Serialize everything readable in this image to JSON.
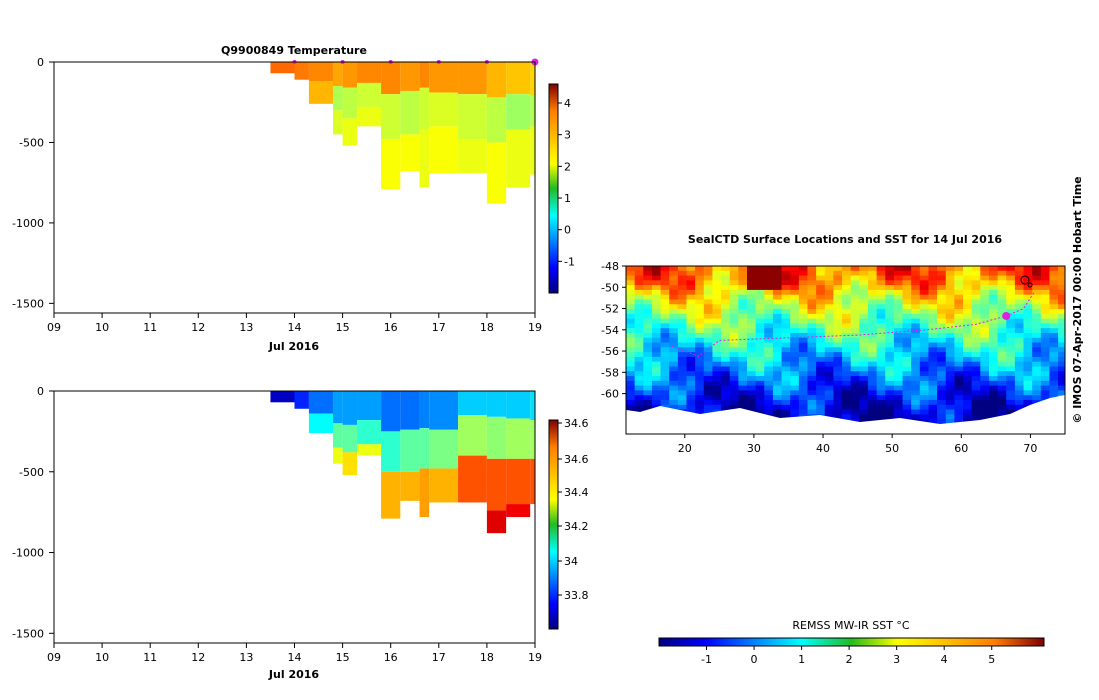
{
  "chart_data": [
    {
      "type": "heatmap",
      "title": "Q9900849  Temperature",
      "xlabel": "Jul 2016",
      "x_ticks": [
        "09",
        "10",
        "11",
        "12",
        "13",
        "14",
        "15",
        "16",
        "17",
        "18",
        "19"
      ],
      "x_range": [
        9,
        19
      ],
      "y_ticks": [
        0,
        -500,
        -1000,
        -1500
      ],
      "ylim": [
        -1560,
        0
      ],
      "colorbar": {
        "min": -2,
        "max": 4.6,
        "ticks": [
          "-1",
          "0",
          "1",
          "2",
          "3",
          "4"
        ]
      },
      "profiles": [
        {
          "day": 13.5,
          "depth": 70,
          "layers": [
            [
              0,
              70,
              3.1
            ]
          ]
        },
        {
          "day": 14.0,
          "depth": 110,
          "layers": [
            [
              0,
              110,
              3.0
            ]
          ]
        },
        {
          "day": 14.3,
          "depth": 260,
          "layers": [
            [
              0,
              120,
              2.9
            ],
            [
              120,
              260,
              2.6
            ]
          ]
        },
        {
          "day": 14.8,
          "depth": 450,
          "layers": [
            [
              0,
              150,
              2.7
            ],
            [
              150,
              300,
              1.6
            ],
            [
              300,
              450,
              1.9
            ]
          ]
        },
        {
          "day": 15.0,
          "depth": 520,
          "layers": [
            [
              0,
              160,
              2.8
            ],
            [
              160,
              350,
              1.7
            ],
            [
              350,
              520,
              2.0
            ]
          ]
        },
        {
          "day": 15.3,
          "depth": 400,
          "layers": [
            [
              0,
              130,
              2.9
            ],
            [
              130,
              280,
              1.8
            ],
            [
              280,
              400,
              2.0
            ]
          ]
        },
        {
          "day": 15.8,
          "depth": 790,
          "layers": [
            [
              0,
              200,
              2.9
            ],
            [
              200,
              480,
              1.8
            ],
            [
              480,
              790,
              2.1
            ]
          ]
        },
        {
          "day": 16.2,
          "depth": 680,
          "layers": [
            [
              0,
              180,
              2.8
            ],
            [
              180,
              450,
              1.7
            ],
            [
              450,
              680,
              2.1
            ]
          ]
        },
        {
          "day": 16.6,
          "depth": 780,
          "layers": [
            [
              0,
              160,
              2.9
            ],
            [
              160,
              420,
              1.8
            ],
            [
              420,
              780,
              2.0
            ]
          ]
        },
        {
          "day": 16.8,
          "depth": 690,
          "layers": [
            [
              0,
              190,
              2.8
            ],
            [
              190,
              400,
              1.9
            ],
            [
              400,
              690,
              2.1
            ]
          ]
        },
        {
          "day": 17.4,
          "depth": 690,
          "layers": [
            [
              0,
              200,
              2.8
            ],
            [
              200,
              480,
              1.8
            ],
            [
              480,
              690,
              2.0
            ]
          ]
        },
        {
          "day": 18.0,
          "depth": 880,
          "layers": [
            [
              0,
              220,
              2.6
            ],
            [
              220,
              500,
              1.7
            ],
            [
              500,
              880,
              2.1
            ]
          ]
        },
        {
          "day": 18.4,
          "depth": 780,
          "layers": [
            [
              0,
              200,
              2.5
            ],
            [
              200,
              420,
              1.5
            ],
            [
              420,
              780,
              2.0
            ]
          ]
        },
        {
          "day": 18.9,
          "depth": 700,
          "layers": [
            [
              0,
              210,
              2.4
            ],
            [
              210,
              400,
              1.6
            ],
            [
              400,
              700,
              2.0
            ]
          ]
        }
      ],
      "surface_markers": [
        14,
        15,
        16,
        17,
        18,
        19
      ]
    },
    {
      "type": "heatmap",
      "title": "",
      "xlabel": "Jul 2016",
      "x_ticks": [
        "09",
        "10",
        "11",
        "12",
        "13",
        "14",
        "15",
        "16",
        "17",
        "18",
        "19"
      ],
      "x_range": [
        9,
        19
      ],
      "y_ticks": [
        0,
        -500,
        -1000,
        -1500
      ],
      "ylim": [
        -1560,
        0
      ],
      "colorbar": {
        "min": 33.65,
        "max": 34.72,
        "ticks": [
          "34.6",
          "34.6",
          "34.4",
          "34.2",
          "34",
          "33.8"
        ]
      },
      "profiles": [
        {
          "day": 13.5,
          "depth": 70,
          "layers": [
            [
              0,
              70,
              33.72
            ]
          ]
        },
        {
          "day": 14.0,
          "depth": 110,
          "layers": [
            [
              0,
              110,
              33.82
            ]
          ]
        },
        {
          "day": 14.3,
          "depth": 260,
          "layers": [
            [
              0,
              140,
              33.9
            ],
            [
              140,
              260,
              34.05
            ]
          ]
        },
        {
          "day": 14.8,
          "depth": 450,
          "layers": [
            [
              0,
              200,
              33.95
            ],
            [
              200,
              350,
              34.15
            ],
            [
              350,
              450,
              34.3
            ]
          ]
        },
        {
          "day": 15.0,
          "depth": 520,
          "layers": [
            [
              0,
              210,
              33.95
            ],
            [
              210,
              380,
              34.15
            ],
            [
              380,
              520,
              34.35
            ]
          ]
        },
        {
          "day": 15.3,
          "depth": 400,
          "layers": [
            [
              0,
              180,
              33.95
            ],
            [
              180,
              330,
              34.1
            ],
            [
              330,
              400,
              34.3
            ]
          ]
        },
        {
          "day": 15.8,
          "depth": 790,
          "layers": [
            [
              0,
              250,
              33.9
            ],
            [
              250,
              500,
              34.1
            ],
            [
              500,
              790,
              34.4
            ]
          ]
        },
        {
          "day": 16.2,
          "depth": 680,
          "layers": [
            [
              0,
              240,
              33.9
            ],
            [
              240,
              500,
              34.15
            ],
            [
              500,
              680,
              34.4
            ]
          ]
        },
        {
          "day": 16.6,
          "depth": 780,
          "layers": [
            [
              0,
              230,
              33.92
            ],
            [
              230,
              480,
              34.15
            ],
            [
              480,
              780,
              34.42
            ]
          ]
        },
        {
          "day": 16.8,
          "depth": 690,
          "layers": [
            [
              0,
              240,
              33.93
            ],
            [
              240,
              480,
              34.18
            ],
            [
              480,
              690,
              34.4
            ]
          ]
        },
        {
          "day": 17.4,
          "depth": 690,
          "layers": [
            [
              0,
              150,
              34.0
            ],
            [
              150,
              400,
              34.22
            ],
            [
              400,
              690,
              34.5
            ]
          ]
        },
        {
          "day": 18.0,
          "depth": 880,
          "layers": [
            [
              0,
              160,
              34.0
            ],
            [
              160,
              420,
              34.2
            ],
            [
              420,
              740,
              34.5
            ],
            [
              740,
              880,
              34.62
            ]
          ]
        },
        {
          "day": 18.4,
          "depth": 780,
          "layers": [
            [
              0,
              170,
              34.0
            ],
            [
              170,
              420,
              34.22
            ],
            [
              420,
              700,
              34.5
            ],
            [
              700,
              780,
              34.6
            ]
          ]
        },
        {
          "day": 18.9,
          "depth": 700,
          "layers": [
            [
              0,
              180,
              34.02
            ],
            [
              180,
              420,
              34.22
            ],
            [
              420,
              700,
              34.5
            ]
          ]
        }
      ]
    },
    {
      "type": "heatmap",
      "title": "SealCTD Surface Locations and SST for 14 Jul 2016",
      "xlabel": "",
      "x_ticks": [
        "20",
        "30",
        "40",
        "50",
        "60",
        "70"
      ],
      "x_range": [
        11.5,
        75
      ],
      "y_ticks": [
        "-48",
        "-50",
        "-52",
        "-54",
        "-56",
        "-58",
        "-60"
      ],
      "y_range": [
        -63.8,
        -48
      ],
      "colorbar_label": "REMSS MW-IR SST °C",
      "colorbar": {
        "min": -2,
        "max": 6.1,
        "ticks": [
          "-1",
          "0",
          "1",
          "2",
          "3",
          "4",
          "5"
        ]
      },
      "sst_by_latitude": [
        [
          -48,
          4.5
        ],
        [
          -49.5,
          4.0
        ],
        [
          -51,
          3.0
        ],
        [
          -52.5,
          2.3
        ],
        [
          -54,
          1.6
        ],
        [
          -55.5,
          1.0
        ],
        [
          -57,
          0.4
        ],
        [
          -58.5,
          -0.2
        ],
        [
          -60,
          -0.8
        ],
        [
          -61.5,
          -1.3
        ],
        [
          -63,
          -1.7
        ]
      ],
      "track": [
        [
          18,
          -55.5
        ],
        [
          22,
          -56.5
        ],
        [
          25,
          -55
        ],
        [
          45,
          -54.5
        ],
        [
          55,
          -54
        ],
        [
          62,
          -53.5
        ],
        [
          66.5,
          -52.7
        ],
        [
          69,
          -52
        ],
        [
          70.5,
          -50.5
        ]
      ],
      "seal_location": [
        66.5,
        -52.7
      ],
      "credit": "© IMOS 07-Apr-2017 00:00 Hobart Time"
    }
  ]
}
